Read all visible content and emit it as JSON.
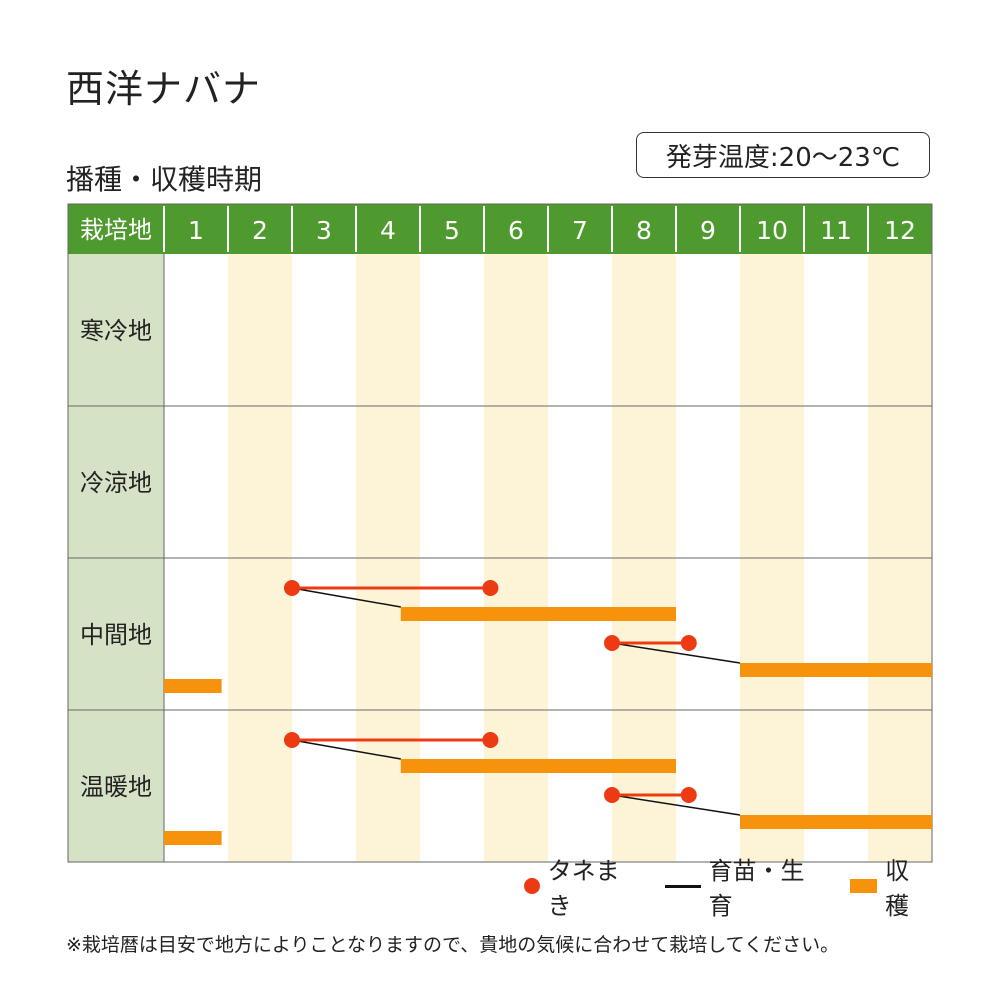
{
  "title": "西洋ナバナ",
  "subtitle": "播種・収穫時期",
  "temperature_label": "発芽温度:20〜23℃",
  "colors": {
    "header_green": "#4e9a2f",
    "row_label_bg": "#d6e2c6",
    "stripe": "#fdf4d7",
    "sowing": "#ec3b13",
    "growing": "#111111",
    "harvest": "#f7920d",
    "grid": "#666666"
  },
  "chart_data": {
    "type": "table",
    "header_label": "栽培地",
    "months": [
      "1",
      "2",
      "3",
      "4",
      "5",
      "6",
      "7",
      "8",
      "9",
      "10",
      "11",
      "12"
    ],
    "regions": [
      {
        "name": "寒冷地",
        "sowing": [],
        "growing": [],
        "harvest": []
      },
      {
        "name": "冷涼地",
        "sowing": [],
        "growing": [],
        "harvest": []
      },
      {
        "name": "中間地",
        "sowing": [
          {
            "start": 3.0,
            "end": 6.1
          },
          {
            "start": 8.0,
            "end": 9.2
          }
        ],
        "growing": [
          {
            "start": 3.0,
            "end": 4.7
          },
          {
            "start": 8.0,
            "end": 10.0
          }
        ],
        "harvest": [
          {
            "start": 4.7,
            "end": 9.0
          },
          {
            "start": 10.0,
            "end": 13.0
          },
          {
            "start": 1.0,
            "end": 1.9
          }
        ]
      },
      {
        "name": "温暖地",
        "sowing": [
          {
            "start": 3.0,
            "end": 6.1
          },
          {
            "start": 8.0,
            "end": 9.2
          }
        ],
        "growing": [
          {
            "start": 3.0,
            "end": 4.7
          },
          {
            "start": 8.0,
            "end": 10.0
          }
        ],
        "harvest": [
          {
            "start": 4.7,
            "end": 9.0
          },
          {
            "start": 10.0,
            "end": 13.0
          },
          {
            "start": 1.0,
            "end": 1.9
          }
        ]
      }
    ],
    "legend": {
      "sowing": "タネまき",
      "growing": "育苗・生育",
      "harvest": "収穫"
    }
  },
  "note": "※栽培暦は目安で地方によりことなりますので、貴地の気候に合わせて栽培してください。"
}
